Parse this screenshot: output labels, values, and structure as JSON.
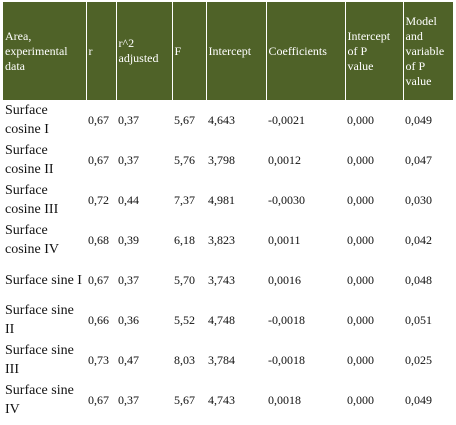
{
  "table": {
    "headers": [
      "Area,\nexperimental\n data",
      "r",
      "r^2\nadjusted",
      "F",
      "Intercept",
      "Coefficients",
      "Intercept\n of P\nvalue",
      "Model\nand\nvariable\n of P\nvalue"
    ],
    "rows": [
      [
        "Surface cosine I",
        "0,67",
        "0,37",
        "5,67",
        "4,643",
        "-0,0021",
        "0,000",
        "0,049"
      ],
      [
        "Surface cosine II",
        "0,67",
        "0,37",
        "5,76",
        "3,798",
        "0,0012",
        "0,000",
        "0,047"
      ],
      [
        "Surface cosine III",
        "0,72",
        "0,44",
        "7,37",
        "4,981",
        "-0,0030",
        "0,000",
        "0,030"
      ],
      [
        "Surface cosine IV",
        "0,68",
        "0,39",
        "6,18",
        "3,823",
        "0,0011",
        "0,000",
        "0,042"
      ],
      [
        "Surface sine I",
        "0,67",
        "0,37",
        "5,70",
        "3,743",
        "0,0016",
        "0,000",
        "0,048"
      ],
      [
        "Surface sine II",
        "0,66",
        "0,36",
        "5,52",
        "4,748",
        "-0,0018",
        "0,000",
        "0,051"
      ],
      [
        "Surface sine III",
        "0,73",
        "0,47",
        "8,03",
        "3,784",
        "-0,0018",
        "0,000",
        "0,025"
      ],
      [
        "Surface sine IV",
        "0,67",
        "0,37",
        "5,67",
        "4,743",
        "0,0018",
        "0,000",
        "0,049"
      ]
    ]
  },
  "colors": {
    "header_background": "#4f6228",
    "header_text": "#ffffff"
  }
}
